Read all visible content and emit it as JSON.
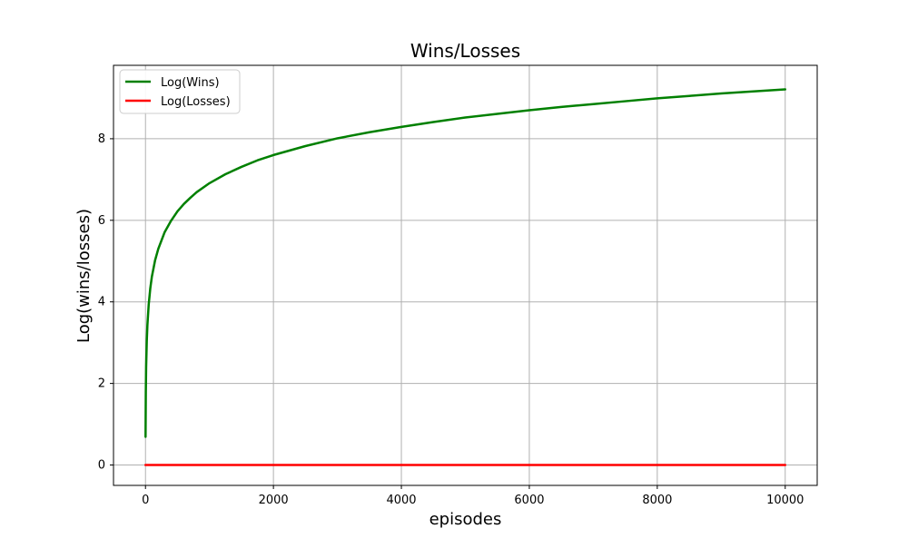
{
  "chart_data": {
    "type": "line",
    "title": "Wins/Losses",
    "xlabel": "episodes",
    "ylabel": "Log(wins/losses)",
    "xlim": [
      -500,
      10500
    ],
    "ylim": [
      -0.5,
      9.8
    ],
    "xticks": [
      0,
      2000,
      4000,
      6000,
      8000,
      10000
    ],
    "yticks": [
      0,
      2,
      4,
      6,
      8
    ],
    "xtick_labels": [
      "0",
      "2000",
      "4000",
      "6000",
      "8000",
      "10000"
    ],
    "ytick_labels": [
      "0",
      "2",
      "4",
      "6",
      "8"
    ],
    "grid": true,
    "legend_position": "top-left",
    "series": [
      {
        "name": "Log(Wins)",
        "color": "#008000",
        "points": [
          [
            1,
            0.69
          ],
          [
            5,
            1.79
          ],
          [
            10,
            2.4
          ],
          [
            20,
            3.04
          ],
          [
            30,
            3.43
          ],
          [
            50,
            3.93
          ],
          [
            75,
            4.33
          ],
          [
            100,
            4.62
          ],
          [
            150,
            5.02
          ],
          [
            200,
            5.3
          ],
          [
            300,
            5.71
          ],
          [
            400,
            5.99
          ],
          [
            500,
            6.22
          ],
          [
            600,
            6.4
          ],
          [
            700,
            6.55
          ],
          [
            800,
            6.69
          ],
          [
            1000,
            6.91
          ],
          [
            1250,
            7.13
          ],
          [
            1500,
            7.31
          ],
          [
            1750,
            7.47
          ],
          [
            2000,
            7.6
          ],
          [
            2500,
            7.82
          ],
          [
            3000,
            8.01
          ],
          [
            3500,
            8.16
          ],
          [
            4000,
            8.29
          ],
          [
            4500,
            8.41
          ],
          [
            5000,
            8.52
          ],
          [
            5500,
            8.61
          ],
          [
            6000,
            8.7
          ],
          [
            6500,
            8.78
          ],
          [
            7000,
            8.85
          ],
          [
            7500,
            8.92
          ],
          [
            8000,
            8.99
          ],
          [
            8500,
            9.05
          ],
          [
            9000,
            9.11
          ],
          [
            9500,
            9.16
          ],
          [
            10000,
            9.21
          ]
        ]
      },
      {
        "name": "Log(Losses)",
        "color": "#ff0000",
        "points": [
          [
            0,
            0
          ],
          [
            10000,
            0
          ]
        ]
      }
    ]
  }
}
